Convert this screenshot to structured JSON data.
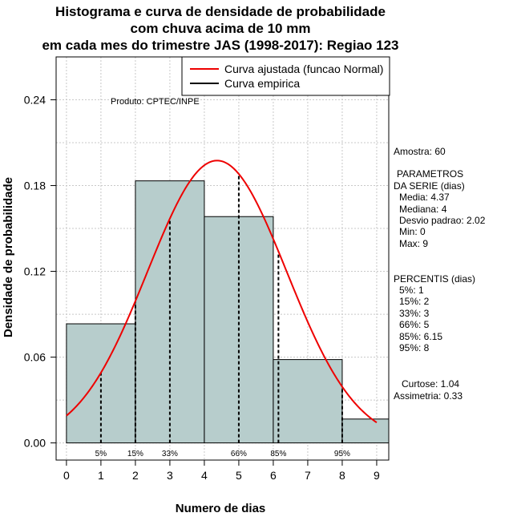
{
  "chart_data": {
    "type": "bar",
    "title_lines": [
      "Histograma e curva de densidade de probabilidade",
      "com chuva acima de 10 mm",
      "em cada mes do trimestre JAS (1998-2017): Regiao 123"
    ],
    "xlabel": "Numero de dias",
    "ylabel": "Densidade de probabilidade",
    "xlim": [
      -0.3,
      9.35
    ],
    "ylim": [
      -0.012,
      0.27
    ],
    "x_ticks": [
      "0",
      "1",
      "2",
      "3",
      "4",
      "5",
      "6",
      "7",
      "8",
      "9"
    ],
    "y_ticks": [
      "0.00",
      "0.06",
      "0.12",
      "0.18",
      "0.24"
    ],
    "grid": true,
    "bins": [
      {
        "x0": 0,
        "x1": 2,
        "density": 0.0833
      },
      {
        "x0": 2,
        "x1": 4,
        "density": 0.1833
      },
      {
        "x0": 4,
        "x1": 6,
        "density": 0.1583
      },
      {
        "x0": 6,
        "x1": 8,
        "density": 0.0583
      },
      {
        "x0": 8,
        "x1": 9.35,
        "density": 0.0167
      }
    ],
    "bar_color": "#b7cdcc",
    "fitted_curve": {
      "name": "Curva ajustada (funcao Normal)",
      "color": "#ee0000",
      "distribution": "normal",
      "mean": 4.37,
      "sd": 2.02,
      "x_range": [
        0,
        9
      ]
    },
    "empirical_curve": {
      "name": "Curva empirica",
      "color": "#000000"
    },
    "percentile_lines": [
      {
        "label": "5%",
        "x": 1
      },
      {
        "label": "15%",
        "x": 2
      },
      {
        "label": "33%",
        "x": 3
      },
      {
        "label": "66%",
        "x": 5
      },
      {
        "label": "85%",
        "x": 6.15
      },
      {
        "label": "95%",
        "x": 8
      }
    ],
    "legend_position": "top-right",
    "annotation": "Produto: CPTEC/INPE"
  },
  "stats_panel": {
    "sample": "Amostra: 60",
    "params_lines": [
      "PARAMETROS",
      "DA SERIE (dias)",
      "Media: 4.37",
      "Mediana: 4",
      "Desvio padrao: 2.02",
      "Min: 0",
      "Max: 9"
    ],
    "percentile_lines": [
      "PERCENTIS (dias)",
      "5%: 1",
      "15%: 2",
      "33%: 3",
      "66%: 5",
      "85%: 6.15",
      "95%: 8"
    ],
    "kurtosis": "Curtose: 1.04",
    "skewness": "Assimetria: 0.33"
  }
}
